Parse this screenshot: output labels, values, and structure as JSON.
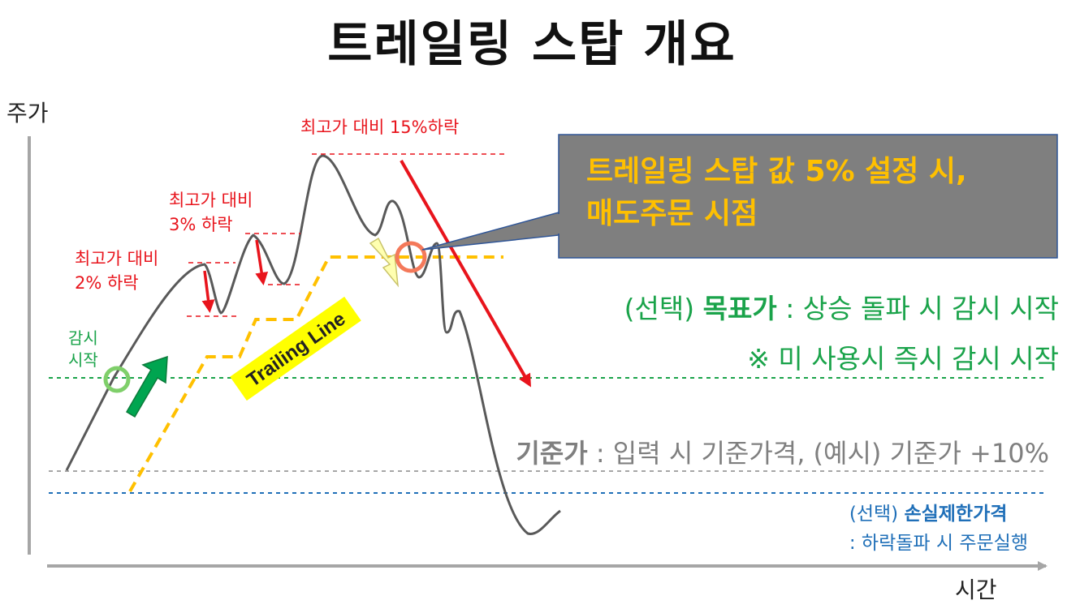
{
  "title": "트레일링 스탑 개요",
  "axes": {
    "y_label": "주가",
    "x_label": "시간"
  },
  "notes": {
    "drop_15": "최고가 대비 15%하락",
    "drop_3": [
      "최고가 대비",
      "3% 하락"
    ],
    "drop_2": [
      "최고가 대비",
      "2% 하락"
    ],
    "monitor_start": [
      "감시",
      "시작"
    ],
    "trailing_line": "Trailing Line"
  },
  "callout": {
    "line1": "트레일링 스탑 값 5% 설정 시,",
    "line2": "매도주문 시점"
  },
  "target": {
    "prefix": "(선택) ",
    "name": "목표가",
    "desc": " : 상승 돌파 시 감시 시작",
    "note": "※ 미 사용시 즉시 감시 시작"
  },
  "base": {
    "name": "기준가",
    "desc": " : 입력 시 기준가격, (예시) 기준가 +10%"
  },
  "stoploss": {
    "prefix": "(선택) ",
    "name": "손실제한가격",
    "desc": ": 하락돌파 시 주문실행"
  },
  "colors": {
    "red": "#e8141c",
    "green": "#1aa34a",
    "trailing": "#ffc000",
    "gray": "#7f7f7f",
    "blue": "#1f6fb8",
    "callout_bg": "#7f7f7f",
    "callout_text": "#ffc000"
  }
}
